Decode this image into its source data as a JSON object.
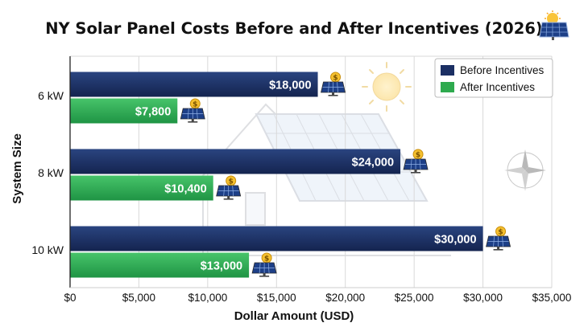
{
  "chart_data": {
    "type": "bar",
    "orientation": "horizontal",
    "title": "NY Solar Panel Costs Before and After Incentives (2026)",
    "xlabel": "Dollar Amount (USD)",
    "ylabel": "System Size",
    "categories": [
      "6 kW",
      "8 kW",
      "10 kW"
    ],
    "series": [
      {
        "name": "Before Incentives",
        "color": "#1b2f63",
        "values": [
          18000,
          24000,
          30000
        ],
        "labels": [
          "$18,000",
          "$24,000",
          "$30,000"
        ]
      },
      {
        "name": "After Incentives",
        "color": "#2eaa4e",
        "values": [
          7800,
          10400,
          13000
        ],
        "labels": [
          "$7,800",
          "$10,400",
          "$13,000"
        ]
      }
    ],
    "xlim": [
      0,
      35000
    ],
    "xticks": [
      0,
      5000,
      10000,
      15000,
      20000,
      25000,
      30000,
      35000
    ],
    "xtick_labels": [
      "$0",
      "$5,000",
      "$10,000",
      "$15,000",
      "$20,000",
      "$25,000",
      "$30,000",
      "$35,000"
    ],
    "grid": true,
    "legend_position": "top-right",
    "icons": [
      "solar-panel-dollar-icon",
      "sun-icon",
      "house-icon",
      "compass-rose-icon"
    ]
  }
}
